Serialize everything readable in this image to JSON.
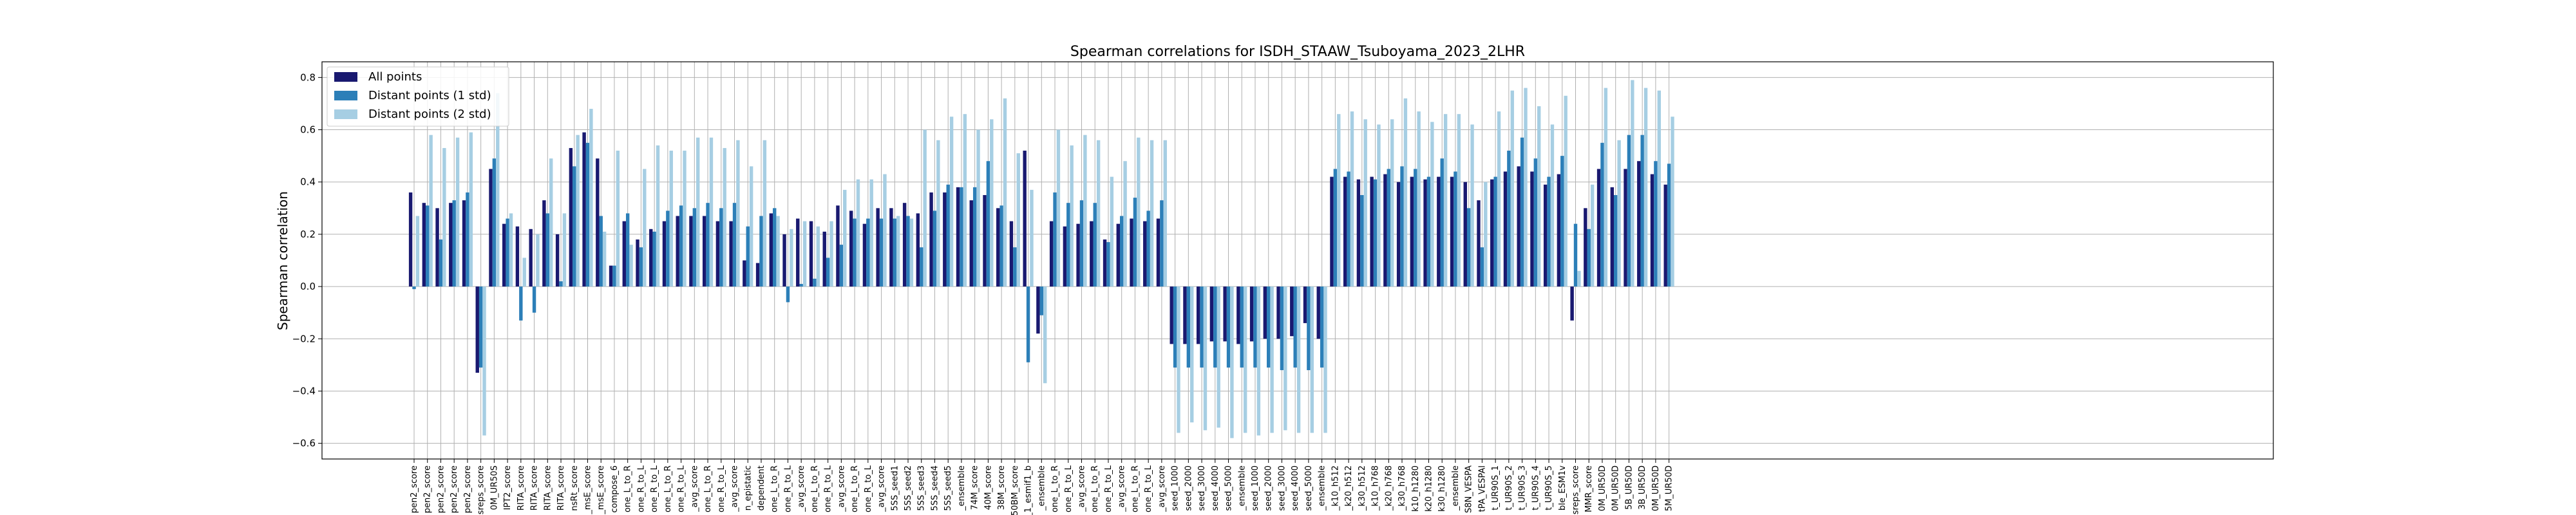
{
  "chart_data": {
    "type": "bar",
    "title": "Spearman correlations for ISDH_STAAW_Tsuboyama_2023_2LHR",
    "xlabel": "",
    "ylabel": "Spearman correlation",
    "ylim": [
      -0.66,
      0.86
    ],
    "yticks": [
      -0.6,
      -0.4,
      -0.2,
      0.0,
      0.2,
      0.4,
      0.6,
      0.8
    ],
    "ytick_labels": [
      "−0.6",
      "−0.4",
      "−0.2",
      "0.0",
      "0.2",
      "0.4",
      "0.6",
      "0.8"
    ],
    "grid": true,
    "legend_position": "top-left",
    "series": [
      {
        "name": "All points",
        "color": "#191970"
      },
      {
        "name": "Distant points (1 std)",
        "color": "#2c7fb8"
      },
      {
        "name": "Distant points (2 std)",
        "color": "#a6cee3"
      }
    ],
    "categories": [
      "pen2_score",
      "pen2_score",
      "pen2_score",
      "pen2_score",
      "pen2_score",
      "sreps_score",
      "0M_UR50S",
      "IPT2_score",
      "RITA_score",
      "RITA_score",
      "RITA_score",
      "RITA_score",
      "nsRt_score",
      "_msE_score",
      "_msE_score",
      "compose_6",
      "one_L_to_R",
      "one_R_to_L",
      "one_R_to_L",
      "one_L_to_R",
      "one_R_to_L",
      "_avg_score",
      "one_L_to_R",
      "one_R_to_L",
      "_avg_score",
      "n_epistatic",
      "dependent",
      "one_L_to_R",
      "one_R_to_L",
      "_avg_score",
      "one_L_to_R",
      "one_R_to_L",
      "_avg_score",
      "one_L_to_R",
      "one_R_to_L",
      "_avg_score",
      "5SS_seed1",
      "5SS_seed2",
      "5SS_seed3",
      "5SS_seed4",
      "5SS_seed5",
      "_ensemble",
      "74M_score",
      "40M_score",
      "38M_score",
      "50BM_score",
      "_1_esmif1_b",
      "_ensemble",
      "one_L_to_R",
      "one_R_to_L",
      "_avg_score",
      "one_L_to_R",
      "one_R_to_L",
      "_avg_score",
      "one_L_to_R",
      "one_R_to_L",
      "_avg_score",
      "seed_1000",
      "seed_2000",
      "seed_3000",
      "seed_4000",
      "seed_5000",
      "_ensemble",
      "seed_1000",
      "seed_2000",
      "seed_3000",
      "seed_4000",
      "seed_5000",
      "_ensemble",
      "_k10_h512",
      "_k20_h512",
      "_k30_h512",
      "_k10_h768",
      "_k20_h768",
      "_k30_h768",
      "k10_h1280",
      "k20_h1280",
      "k30_h1280",
      "_ensemble",
      "S8N_VESPA",
      "tPA_VESPAl",
      "t_UR90S_1",
      "t_UR90S_2",
      "t_UR90S_3",
      "t_UR90S_4",
      "t_UR90S_5",
      "ble_ESM1v",
      "sreps_score",
      "MMR_score",
      "0M_UR50D",
      "0M_UR50D",
      "5B_UR50D",
      "3B_UR50D",
      "0M_UR50D",
      "5M_UR50D"
    ],
    "values": [
      [
        0.36,
        0.32,
        0.3,
        0.32,
        0.33,
        -0.33,
        0.45,
        0.24,
        0.23,
        0.22,
        0.33,
        0.2,
        0.53,
        0.59,
        0.49,
        0.08,
        0.25,
        0.18,
        0.22,
        0.25,
        0.27,
        0.27,
        0.27,
        0.25,
        0.25,
        0.1,
        0.09,
        0.28,
        0.2,
        0.26,
        0.25,
        0.21,
        0.31,
        0.29,
        0.24,
        0.3,
        0.3,
        0.32,
        0.28,
        0.36,
        0.36,
        0.38,
        0.33,
        0.35,
        0.3,
        0.25,
        0.52,
        -0.18,
        0.25,
        0.23,
        0.24,
        0.25,
        0.18,
        0.24,
        0.26,
        0.25,
        0.26,
        -0.22,
        -0.22,
        -0.22,
        -0.21,
        -0.21,
        -0.22,
        -0.21,
        -0.2,
        -0.2,
        -0.19,
        -0.14,
        -0.2,
        0.42,
        0.42,
        0.41,
        0.42,
        0.43,
        0.4,
        0.42,
        0.41,
        0.42,
        0.42,
        0.4,
        0.33,
        0.41,
        0.44,
        0.46,
        0.44,
        0.39,
        0.43,
        -0.13,
        0.3,
        0.45,
        0.38,
        0.45,
        0.48,
        0.43,
        0.39
      ],
      [
        -0.01,
        0.31,
        0.18,
        0.33,
        0.36,
        -0.31,
        0.49,
        0.26,
        -0.13,
        -0.1,
        0.28,
        0.02,
        0.46,
        0.55,
        0.27,
        0.08,
        0.28,
        0.15,
        0.21,
        0.29,
        0.31,
        0.3,
        0.32,
        0.3,
        0.32,
        0.23,
        0.27,
        0.3,
        -0.06,
        0.01,
        0.03,
        0.11,
        0.16,
        0.26,
        0.26,
        0.26,
        0.26,
        0.27,
        0.15,
        0.29,
        0.39,
        0.38,
        0.38,
        0.48,
        0.31,
        0.15,
        -0.29,
        -0.11,
        0.36,
        0.32,
        0.33,
        0.32,
        0.17,
        0.27,
        0.34,
        0.29,
        0.33,
        -0.31,
        -0.31,
        -0.31,
        -0.31,
        -0.31,
        -0.31,
        -0.31,
        -0.31,
        -0.32,
        -0.31,
        -0.32,
        -0.31,
        0.45,
        0.44,
        0.35,
        0.41,
        0.45,
        0.46,
        0.45,
        0.42,
        0.49,
        0.44,
        0.3,
        0.15,
        0.42,
        0.52,
        0.57,
        0.49,
        0.42,
        0.5,
        0.24,
        0.22,
        0.55,
        0.35,
        0.58,
        0.58,
        0.48,
        0.47
      ],
      [
        0.27,
        0.58,
        0.53,
        0.57,
        0.59,
        -0.57,
        0.74,
        0.28,
        0.11,
        0.2,
        0.49,
        0.28,
        0.58,
        0.68,
        0.21,
        0.52,
        0.16,
        0.45,
        0.54,
        0.52,
        0.52,
        0.57,
        0.57,
        0.53,
        0.56,
        0.46,
        0.56,
        0.27,
        0.22,
        0.25,
        0.23,
        0.25,
        0.37,
        0.41,
        0.41,
        0.43,
        0.27,
        0.26,
        0.6,
        0.56,
        0.65,
        0.66,
        0.6,
        0.64,
        0.72,
        0.51,
        0.37,
        -0.37,
        0.6,
        0.54,
        0.58,
        0.56,
        0.42,
        0.48,
        0.57,
        0.56,
        0.56,
        -0.56,
        -0.52,
        -0.55,
        -0.54,
        -0.58,
        -0.56,
        -0.57,
        -0.56,
        -0.55,
        -0.56,
        -0.56,
        -0.56,
        0.66,
        0.67,
        0.64,
        0.62,
        0.64,
        0.72,
        0.67,
        0.63,
        0.66,
        0.66,
        0.62,
        0.4,
        0.67,
        0.75,
        0.76,
        0.69,
        0.62,
        0.73,
        0.06,
        0.39,
        0.76,
        0.56,
        0.79,
        0.76,
        0.75,
        0.65
      ]
    ]
  }
}
